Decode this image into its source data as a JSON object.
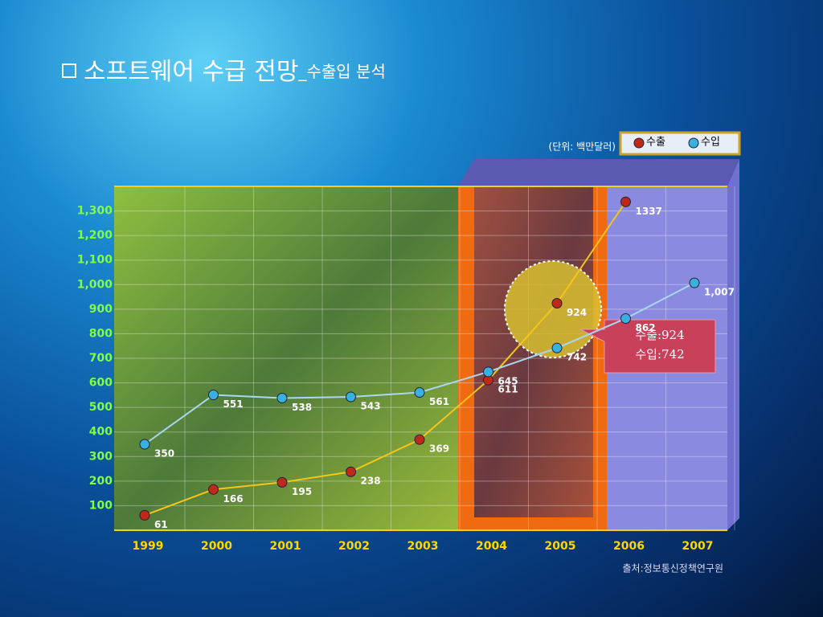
{
  "chart_data": {
    "type": "line",
    "title": "소프트웨어 수급 전망",
    "subtitle": "_수출입 분석",
    "unit_note": "(단위: 백만달러)",
    "source": "출처:정보통신정책연구원",
    "annotations": [
      "수출:924",
      "수입:742"
    ],
    "categories": [
      "1999",
      "2000",
      "2001",
      "2002",
      "2003",
      "2004",
      "2005",
      "2006",
      "2007"
    ],
    "series": [
      {
        "name": "수출",
        "color": "#c0281a",
        "line_color": "#f5c518",
        "values": [
          61,
          166,
          195,
          238,
          369,
          611,
          924,
          1337,
          null
        ]
      },
      {
        "name": "수입",
        "color": "#3ab0e0",
        "line_color": "#a8d8f0",
        "values": [
          350,
          551,
          538,
          543,
          561,
          645,
          742,
          862,
          1007
        ],
        "value_labels": [
          "350",
          "551",
          "538",
          "543",
          "561",
          "645",
          "742",
          "862",
          "1,007"
        ]
      }
    ],
    "ylim": [
      0,
      1400
    ],
    "yticks": [
      100,
      200,
      300,
      400,
      500,
      600,
      700,
      800,
      900,
      {
        "value": 1000,
        "label": "1,000"
      },
      {
        "value": 1100,
        "label": "1,100"
      },
      {
        "value": 1200,
        "label": "1,200"
      },
      {
        "value": 1300,
        "label": "1,300"
      }
    ],
    "grid": true,
    "legend": "top-right"
  }
}
